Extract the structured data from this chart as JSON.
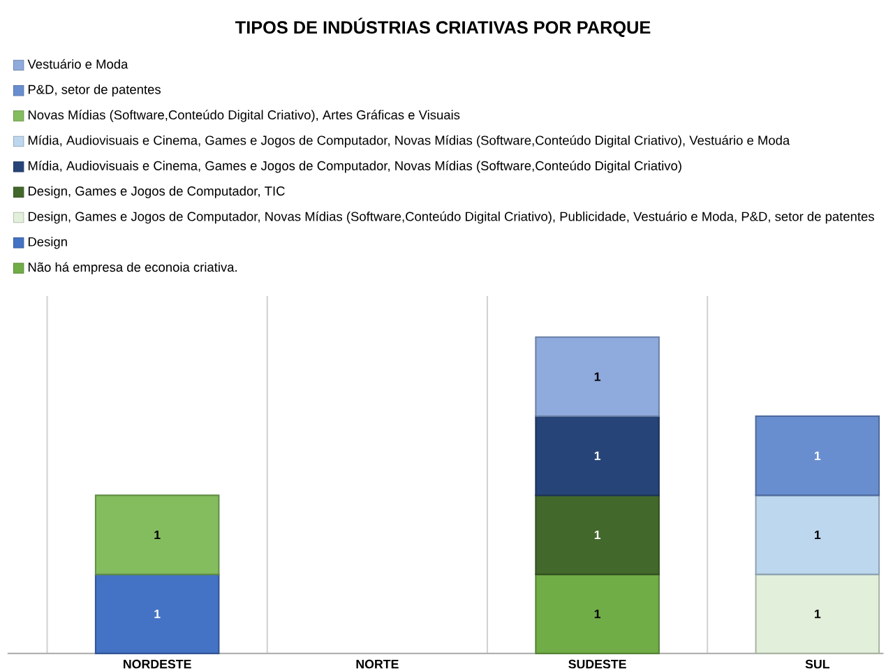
{
  "chart_data": {
    "type": "bar",
    "stacked": true,
    "title": "TIPOS DE INDÚSTRIAS CRIATIVAS POR PARQUE",
    "categories": [
      "NORDESTE",
      "NORTE",
      "SUDESTE",
      "SUL"
    ],
    "series": [
      {
        "name": "Não há empresa de econoia criativa.",
        "color": "#70ad47",
        "values": [
          null,
          null,
          1,
          null
        ]
      },
      {
        "name": "Design",
        "color": "#4472c4",
        "values": [
          1,
          null,
          null,
          null
        ]
      },
      {
        "name": "Design, Games e Jogos de Computador, Novas Mídias (Software,Conteúdo Digital Criativo), Publicidade, Vestuário e Moda, P&D, setor de patentes",
        "color": "#e2efda",
        "values": [
          null,
          null,
          null,
          1
        ]
      },
      {
        "name": "Design, Games e Jogos de Computador, TIC",
        "color": "#43682b",
        "values": [
          null,
          null,
          1,
          null
        ]
      },
      {
        "name": "Mídia, Audiovisuais e Cinema, Games e Jogos de Computador, Novas Mídias (Software,Conteúdo Digital Criativo)",
        "color": "#264478",
        "values": [
          null,
          null,
          1,
          null
        ]
      },
      {
        "name": "Mídia, Audiovisuais e Cinema, Games e Jogos de Computador, Novas Mídias (Software,Conteúdo Digital Criativo), Vestuário e Moda",
        "color": "#bdd7ee",
        "values": [
          null,
          null,
          null,
          1
        ]
      },
      {
        "name": "Novas Mídias (Software,Conteúdo Digital Criativo), Artes Gráficas e Visuais",
        "color": "#84bd5e",
        "values": [
          1,
          null,
          null,
          null
        ]
      },
      {
        "name": "P&D, setor de patentes",
        "color": "#698ed0",
        "values": [
          null,
          null,
          null,
          1
        ]
      },
      {
        "name": "Vestuário e Moda",
        "color": "#8faadc",
        "values": [
          null,
          null,
          1,
          null
        ]
      }
    ],
    "data_labels": true,
    "grid": "x",
    "legend": "top left"
  }
}
